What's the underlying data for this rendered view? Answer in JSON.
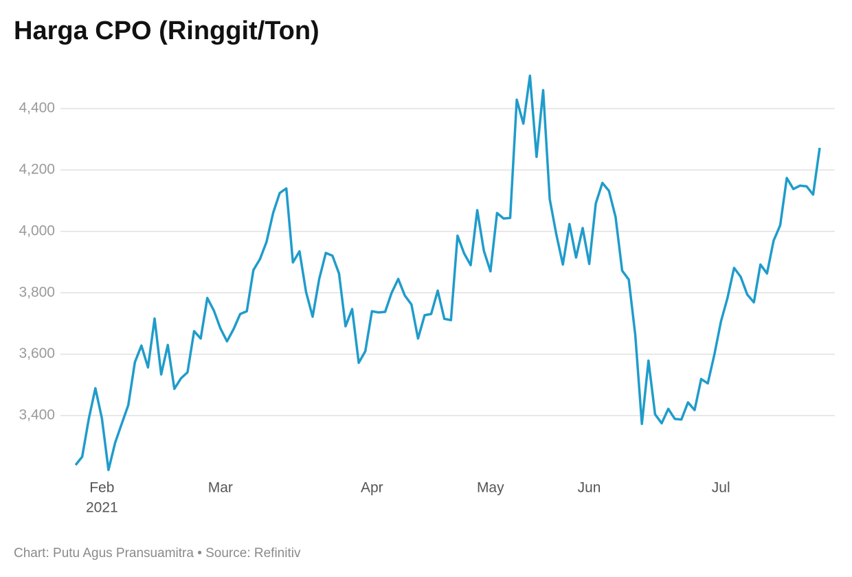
{
  "chart_data": {
    "type": "line",
    "title": "Harga CPO (Ringgit/Ton)",
    "source": "Chart: Putu Agus Pransuamitra • Source: Refinitiv",
    "year_label": "2021",
    "categories": [
      null,
      null,
      null,
      null,
      "Feb",
      null,
      null,
      null,
      null,
      null,
      null,
      null,
      null,
      null,
      null,
      null,
      null,
      null,
      null,
      null,
      null,
      null,
      "Mar",
      null,
      null,
      null,
      null,
      null,
      null,
      null,
      null,
      null,
      null,
      null,
      null,
      null,
      null,
      null,
      null,
      null,
      null,
      null,
      null,
      null,
      null,
      "Apr",
      null,
      null,
      null,
      null,
      null,
      null,
      null,
      null,
      null,
      null,
      null,
      null,
      null,
      null,
      null,
      null,
      null,
      "May",
      null,
      null,
      null,
      null,
      null,
      null,
      null,
      null,
      null,
      null,
      null,
      null,
      null,
      null,
      "Jun",
      null,
      null,
      null,
      null,
      null,
      null,
      null,
      null,
      null,
      null,
      null,
      null,
      null,
      null,
      null,
      null,
      null,
      null,
      null,
      "Jul",
      null,
      null,
      null,
      null,
      null,
      null,
      null,
      null,
      null,
      null,
      null,
      null,
      null,
      null,
      null
    ],
    "series": [
      {
        "name": "Harga CPO",
        "color": "#1f9ccb",
        "values": [
          3239,
          3266,
          3389,
          3489,
          3391,
          3223,
          3311,
          3373,
          3434,
          3574,
          3628,
          3557,
          3716,
          3534,
          3630,
          3487,
          3521,
          3541,
          3675,
          3651,
          3783,
          3742,
          3684,
          3642,
          3682,
          3731,
          3740,
          3874,
          3910,
          3966,
          4060,
          4125,
          4140,
          3899,
          3935,
          3803,
          3722,
          3845,
          3930,
          3921,
          3863,
          3691,
          3747,
          3572,
          3610,
          3740,
          3736,
          3738,
          3800,
          3845,
          3791,
          3762,
          3651,
          3727,
          3731,
          3807,
          3715,
          3711,
          3986,
          3928,
          3890,
          4069,
          3937,
          3870,
          4060,
          4042,
          4044,
          4429,
          4351,
          4507,
          4243,
          4460,
          4105,
          3991,
          3892,
          4024,
          3915,
          4011,
          3894,
          4091,
          4158,
          4132,
          4047,
          3872,
          3843,
          3662,
          3373,
          3579,
          3404,
          3375,
          3422,
          3389,
          3387,
          3443,
          3418,
          3519,
          3505,
          3599,
          3706,
          3783,
          3881,
          3852,
          3794,
          3769,
          3892,
          3863,
          3970,
          4020,
          4174,
          4138,
          4149,
          4147,
          4120,
          4272
        ]
      }
    ],
    "ylim": [
      3200,
      4530
    ],
    "yticks": [
      {
        "value": 3400,
        "label": "3,400"
      },
      {
        "value": 3600,
        "label": "3,600"
      },
      {
        "value": 3800,
        "label": "3,800"
      },
      {
        "value": 4000,
        "label": "4,000"
      },
      {
        "value": 4200,
        "label": "4,200"
      },
      {
        "value": 4400,
        "label": "4,400"
      }
    ],
    "grid": true
  }
}
